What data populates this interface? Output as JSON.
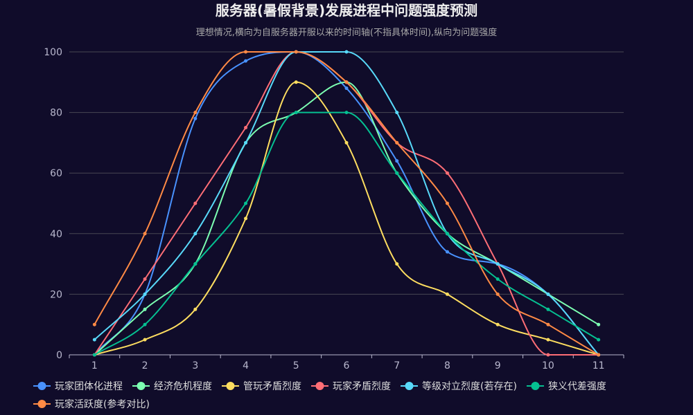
{
  "chart_data": {
    "type": "line",
    "title": "服务器(暑假背景)发展进程中问题强度预测",
    "subtitle": "理想情况,横向为自服务器开服以来的时间轴(不指具体时间),纵向为问题强度",
    "categories": [
      "1",
      "2",
      "3",
      "4",
      "5",
      "6",
      "7",
      "8",
      "9",
      "10",
      "11"
    ],
    "ylim": [
      0,
      100
    ],
    "yticks": [
      0,
      20,
      40,
      60,
      80,
      100
    ],
    "grid": true,
    "legend_position": "bottom",
    "series": [
      {
        "name": "玩家团体化进程",
        "color": "#4992ff",
        "values": [
          0,
          20,
          78,
          97,
          100,
          88,
          64,
          34,
          30,
          20,
          0
        ]
      },
      {
        "name": "经济危机程度",
        "color": "#7cffb2",
        "values": [
          0,
          15,
          30,
          70,
          80,
          90,
          60,
          40,
          30,
          20,
          10
        ]
      },
      {
        "name": "管玩矛盾烈度",
        "color": "#fddd60",
        "values": [
          0,
          5,
          15,
          45,
          90,
          70,
          30,
          20,
          10,
          5,
          0
        ]
      },
      {
        "name": "玩家矛盾烈度",
        "color": "#ff6e76",
        "values": [
          0,
          25,
          50,
          75,
          100,
          90,
          70,
          60,
          30,
          0,
          0
        ]
      },
      {
        "name": "等级对立烈度(若存在)",
        "color": "#58d9f9",
        "values": [
          5,
          20,
          40,
          70,
          100,
          100,
          80,
          40,
          30,
          20,
          0
        ]
      },
      {
        "name": "狭义代差强度",
        "color": "#05c091",
        "values": [
          0,
          10,
          30,
          50,
          80,
          80,
          60,
          40,
          25,
          15,
          5
        ]
      },
      {
        "name": "玩家活跃度(参考对比)",
        "color": "#ff8a45",
        "values": [
          10,
          40,
          80,
          100,
          100,
          90,
          70,
          50,
          20,
          10,
          0
        ]
      }
    ]
  }
}
